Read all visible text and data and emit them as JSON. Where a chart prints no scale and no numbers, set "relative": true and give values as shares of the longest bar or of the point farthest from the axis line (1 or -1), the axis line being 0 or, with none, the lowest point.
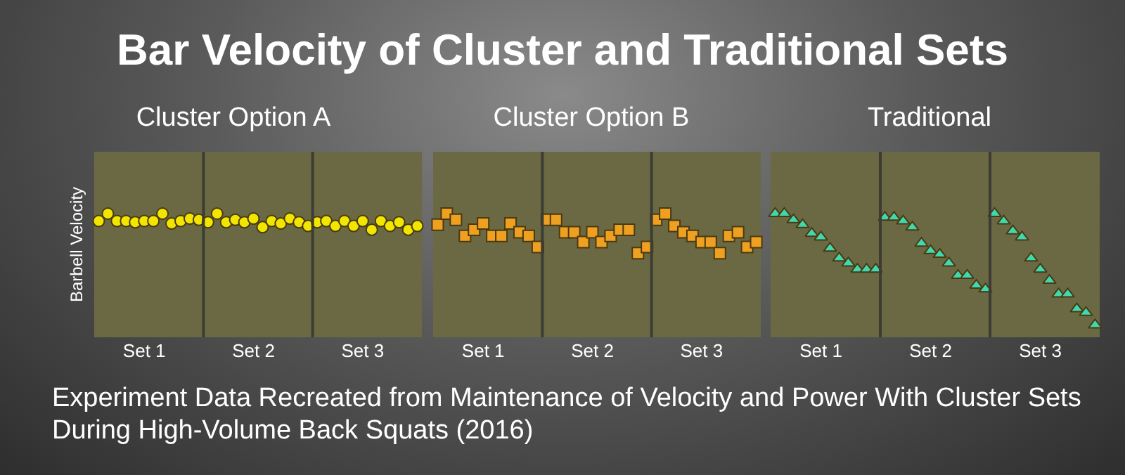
{
  "chart_data": [
    {
      "type": "scatter",
      "title": "Bar Velocity of Cluster and Traditional Sets",
      "subtitle": "Cluster Option A",
      "ylabel": "Barbell Velocity",
      "relative": true,
      "marker": "circle",
      "annotations": [
        "Experiment Data Recreated from Maintenance of Velocity and Power With Cluster Sets During High-Volume Back Squats (2016)"
      ],
      "categories": [
        null,
        null,
        null,
        null,
        null,
        "Set 1",
        null,
        null,
        null,
        null,
        null,
        null,
        null,
        null,
        null,
        null,
        null,
        "Set 2",
        null,
        null,
        null,
        null,
        null,
        null,
        null,
        null,
        null,
        null,
        null,
        "Set 3",
        null,
        null,
        null,
        null,
        null,
        null
      ],
      "series": [
        {
          "color": "#f2e600",
          "values": [
            0.94,
            1,
            0.94,
            0.94,
            0.93,
            0.94,
            0.94,
            1,
            0.92,
            0.94,
            0.96,
            0.95,
            0.93,
            1,
            0.93,
            0.95,
            0.93,
            0.96,
            0.89,
            0.94,
            0.92,
            0.96,
            0.93,
            0.9,
            0.93,
            0.94,
            0.9,
            0.94,
            0.9,
            0.94,
            0.87,
            0.94,
            0.9,
            0.93,
            0.87,
            0.9
          ]
        }
      ]
    },
    {
      "type": "scatter",
      "subtitle": "Cluster Option B",
      "relative": true,
      "marker": "square",
      "categories": [
        null,
        null,
        null,
        null,
        null,
        "Set 1",
        null,
        null,
        null,
        null,
        null,
        null,
        null,
        null,
        null,
        null,
        null,
        "Set 2",
        null,
        null,
        null,
        null,
        null,
        null,
        null,
        null,
        null,
        null,
        null,
        "Set 3",
        null,
        null,
        null,
        null,
        null,
        null
      ],
      "series": [
        {
          "color": "#f0a020",
          "values": [
            0.91,
            1,
            0.95,
            0.82,
            0.87,
            0.92,
            0.82,
            0.82,
            0.92,
            0.85,
            0.82,
            0.73,
            0.95,
            0.95,
            0.85,
            0.85,
            0.77,
            0.85,
            0.77,
            0.82,
            0.87,
            0.87,
            0.68,
            0.73,
            0.95,
            1,
            0.9,
            0.85,
            0.82,
            0.77,
            0.77,
            0.68,
            0.82,
            0.85,
            0.73,
            0.77
          ]
        }
      ]
    },
    {
      "type": "scatter",
      "subtitle": "Traditional",
      "relative": true,
      "marker": "triangle",
      "categories": [
        null,
        null,
        null,
        null,
        null,
        "Set 1",
        null,
        null,
        null,
        null,
        null,
        null,
        null,
        null,
        null,
        null,
        null,
        "Set 2",
        null,
        null,
        null,
        null,
        null,
        null,
        null,
        null,
        null,
        null,
        null,
        "Set 3",
        null,
        null,
        null,
        null,
        null,
        null
      ],
      "series": [
        {
          "color": "#40d8b0",
          "values": [
            1,
            1,
            0.95,
            0.91,
            0.84,
            0.81,
            0.72,
            0.64,
            0.6,
            0.55,
            0.55,
            0.55,
            0.97,
            0.97,
            0.94,
            0.89,
            0.76,
            0.7,
            0.67,
            0.6,
            0.5,
            0.5,
            0.42,
            0.39,
            1,
            0.94,
            0.86,
            0.81,
            0.64,
            0.55,
            0.46,
            0.35,
            0.35,
            0.23,
            0.2,
            0.1
          ]
        }
      ]
    }
  ]
}
